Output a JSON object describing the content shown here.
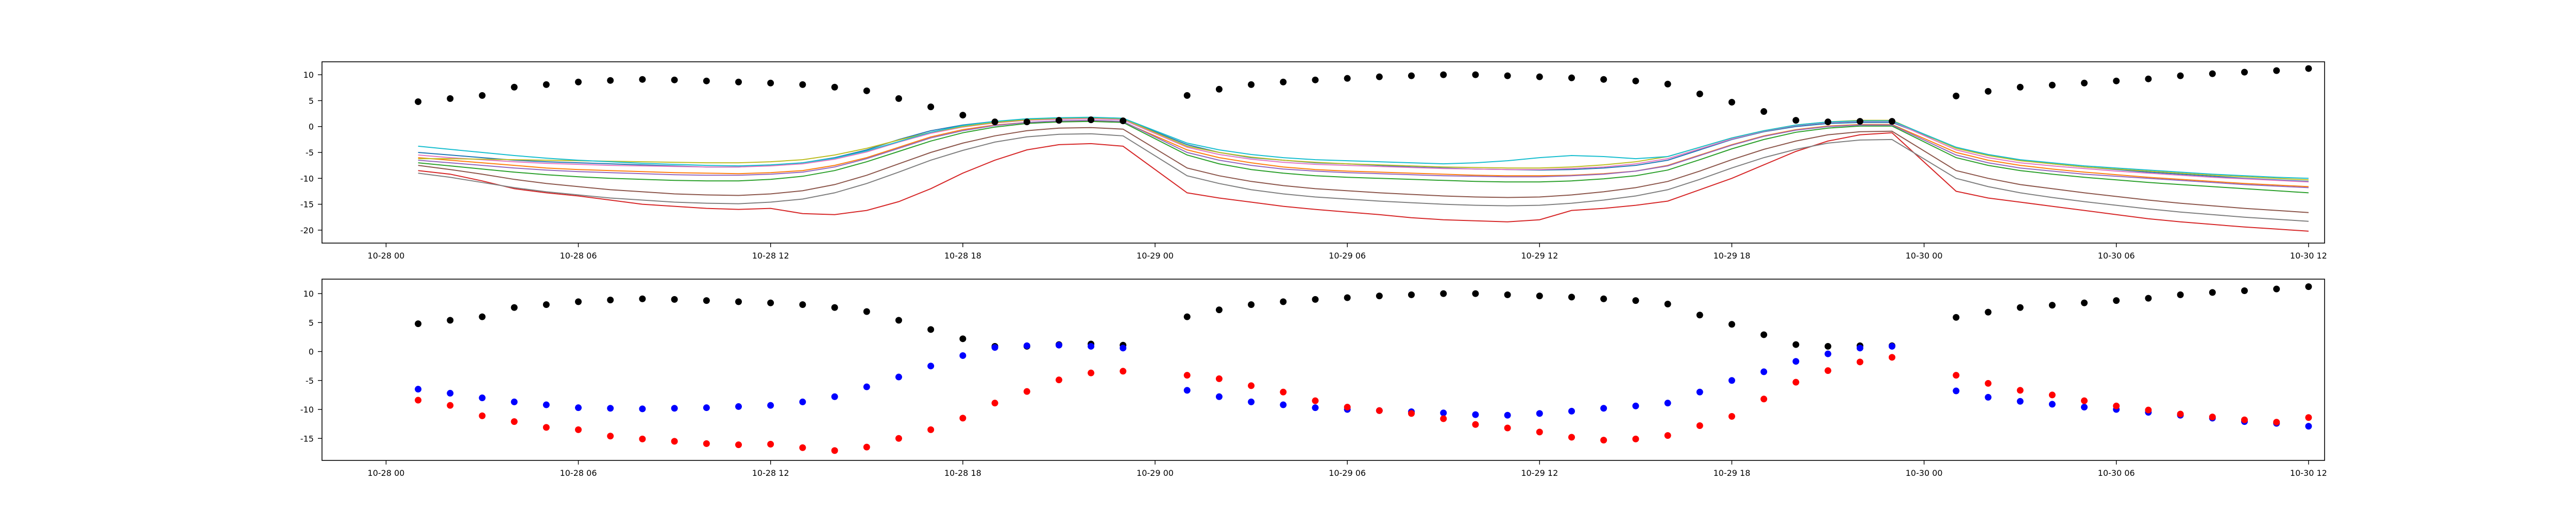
{
  "chart_data": [
    {
      "type": "line",
      "title": "",
      "xlabel": "",
      "ylabel": "",
      "x_ticks": [
        "10-28 00",
        "10-28 06",
        "10-28 12",
        "10-28 18",
        "10-29 00",
        "10-29 06",
        "10-29 12",
        "10-29 18",
        "10-30 00",
        "10-30 06",
        "10-30 12"
      ],
      "y_ticks": [
        "10",
        "5",
        "0",
        "-5",
        "-10",
        "-15",
        "-20"
      ],
      "xlim": [
        -2.0,
        60.5
      ],
      "ylim": [
        -22.5,
        12.5
      ],
      "grid": false,
      "x": [
        1,
        2,
        3,
        4,
        5,
        6,
        7,
        8,
        9,
        10,
        11,
        12,
        13,
        14,
        15,
        16,
        17,
        18,
        19,
        20,
        21,
        22,
        23,
        25,
        26,
        27,
        28,
        29,
        30,
        31,
        32,
        33,
        34,
        35,
        36,
        37,
        38,
        39,
        40,
        41,
        42,
        43,
        44,
        45,
        46,
        47,
        49,
        50,
        51,
        52,
        53,
        54,
        55,
        56,
        57,
        58,
        59,
        60
      ],
      "series_colors": [
        "#1f77b4",
        "#ff7f0e",
        "#2ca02c",
        "#d62728",
        "#9467bd",
        "#8c564b",
        "#e377c2",
        "#7f7f7f",
        "#bcbd22",
        "#17becf"
      ],
      "series": [
        {
          "values": [
            -5.0,
            -5.5,
            -6.0,
            -6.5,
            -6.8,
            -7.0,
            -7.2,
            -7.4,
            -7.6,
            -7.8,
            -7.8,
            -7.5,
            -7.0,
            -6.0,
            -4.5,
            -2.5,
            -0.8,
            0.3,
            1.0,
            1.4,
            1.6,
            1.7,
            1.5,
            -3.5,
            -5.0,
            -6.0,
            -6.5,
            -7.0,
            -7.2,
            -7.5,
            -7.8,
            -8.0,
            -8.2,
            -8.3,
            -8.4,
            -8.3,
            -8.0,
            -7.5,
            -6.5,
            -4.5,
            -2.5,
            -1.0,
            0.0,
            0.6,
            0.8,
            0.8,
            -4.0,
            -5.5,
            -6.5,
            -7.2,
            -7.8,
            -8.3,
            -8.8,
            -9.2,
            -9.6,
            -10.0,
            -10.3,
            -10.6
          ]
        },
        {
          "values": [
            -6.0,
            -6.5,
            -7.0,
            -7.5,
            -8.0,
            -8.3,
            -8.5,
            -8.7,
            -8.9,
            -9.0,
            -9.1,
            -8.9,
            -8.5,
            -7.5,
            -6.0,
            -4.0,
            -2.0,
            -0.6,
            0.3,
            0.8,
            1.0,
            1.1,
            0.9,
            -4.5,
            -6.0,
            -7.0,
            -7.8,
            -8.3,
            -8.6,
            -8.8,
            -9.0,
            -9.2,
            -9.4,
            -9.5,
            -9.5,
            -9.4,
            -9.1,
            -8.6,
            -7.5,
            -5.5,
            -3.5,
            -1.8,
            -0.6,
            0.1,
            0.4,
            0.4,
            -5.0,
            -6.5,
            -7.5,
            -8.2,
            -8.8,
            -9.3,
            -9.8,
            -10.2,
            -10.6,
            -11.0,
            -11.3,
            -11.6
          ]
        },
        {
          "values": [
            -7.0,
            -7.6,
            -8.2,
            -8.8,
            -9.3,
            -9.7,
            -10.0,
            -10.2,
            -10.4,
            -10.5,
            -10.5,
            -10.2,
            -9.6,
            -8.5,
            -6.8,
            -4.8,
            -2.8,
            -1.2,
            -0.1,
            0.6,
            0.9,
            1.0,
            0.8,
            -5.5,
            -7.2,
            -8.3,
            -9.0,
            -9.5,
            -9.8,
            -10.0,
            -10.2,
            -10.4,
            -10.6,
            -10.7,
            -10.7,
            -10.5,
            -10.1,
            -9.5,
            -8.4,
            -6.4,
            -4.3,
            -2.5,
            -1.1,
            -0.3,
            0.1,
            0.1,
            -6.0,
            -7.5,
            -8.5,
            -9.2,
            -9.8,
            -10.3,
            -10.8,
            -11.2,
            -11.6,
            -12.0,
            -12.4,
            -12.8
          ]
        },
        {
          "values": [
            -8.5,
            -9.2,
            -10.5,
            -12.0,
            -12.8,
            -13.4,
            -14.2,
            -15.0,
            -15.4,
            -15.8,
            -16.0,
            -15.8,
            -16.8,
            -17.0,
            -16.2,
            -14.5,
            -12.0,
            -9.0,
            -6.5,
            -4.5,
            -3.5,
            -3.3,
            -3.8,
            -12.8,
            -13.8,
            -14.6,
            -15.4,
            -16.0,
            -16.5,
            -17.0,
            -17.6,
            -18.0,
            -18.2,
            -18.4,
            -18.0,
            -16.2,
            -15.8,
            -15.2,
            -14.4,
            -12.2,
            -10.0,
            -7.4,
            -4.8,
            -2.8,
            -1.6,
            -1.2,
            -12.5,
            -13.8,
            -14.6,
            -15.4,
            -16.2,
            -17.0,
            -17.8,
            -18.4,
            -18.9,
            -19.4,
            -19.8,
            -20.2
          ]
        },
        {
          "values": [
            -6.5,
            -7.0,
            -7.5,
            -8.0,
            -8.4,
            -8.7,
            -8.9,
            -9.1,
            -9.3,
            -9.4,
            -9.4,
            -9.2,
            -8.8,
            -7.8,
            -6.2,
            -4.2,
            -2.2,
            -0.8,
            0.2,
            0.8,
            1.1,
            1.2,
            1.0,
            -5.0,
            -6.5,
            -7.5,
            -8.2,
            -8.6,
            -8.9,
            -9.1,
            -9.3,
            -9.5,
            -9.6,
            -9.7,
            -9.7,
            -9.5,
            -9.2,
            -8.6,
            -7.6,
            -5.6,
            -3.6,
            -1.9,
            -0.7,
            0.0,
            0.3,
            0.3,
            -5.5,
            -7.0,
            -8.0,
            -8.6,
            -9.2,
            -9.6,
            -10.0,
            -10.4,
            -10.8,
            -11.2,
            -11.5,
            -11.8
          ]
        },
        {
          "values": [
            -7.5,
            -8.3,
            -9.2,
            -10.2,
            -11.0,
            -11.6,
            -12.2,
            -12.6,
            -13.0,
            -13.2,
            -13.3,
            -13.0,
            -12.4,
            -11.2,
            -9.4,
            -7.2,
            -5.0,
            -3.2,
            -1.8,
            -0.8,
            -0.3,
            -0.2,
            -0.5,
            -8.0,
            -9.5,
            -10.6,
            -11.4,
            -12.0,
            -12.4,
            -12.8,
            -13.1,
            -13.4,
            -13.6,
            -13.7,
            -13.6,
            -13.2,
            -12.6,
            -11.8,
            -10.6,
            -8.6,
            -6.4,
            -4.4,
            -2.8,
            -1.6,
            -1.0,
            -0.9,
            -8.5,
            -10.0,
            -11.2,
            -12.0,
            -12.8,
            -13.5,
            -14.2,
            -14.8,
            -15.3,
            -15.8,
            -16.2,
            -16.6
          ]
        },
        {
          "values": [
            -5.5,
            -6.0,
            -6.4,
            -6.8,
            -7.1,
            -7.3,
            -7.5,
            -7.6,
            -7.7,
            -7.8,
            -7.8,
            -7.6,
            -7.2,
            -6.3,
            -4.9,
            -3.0,
            -1.3,
            -0.1,
            0.7,
            1.2,
            1.4,
            1.5,
            1.3,
            -4.0,
            -5.4,
            -6.3,
            -6.9,
            -7.3,
            -7.5,
            -7.7,
            -7.9,
            -8.1,
            -8.2,
            -8.3,
            -8.3,
            -8.1,
            -7.8,
            -7.2,
            -6.2,
            -4.3,
            -2.4,
            -0.9,
            0.2,
            0.8,
            1.0,
            1.0,
            -4.5,
            -6.0,
            -7.0,
            -7.6,
            -8.1,
            -8.6,
            -9.0,
            -9.4,
            -9.8,
            -10.1,
            -10.4,
            -10.7
          ]
        },
        {
          "values": [
            -9.0,
            -9.8,
            -10.8,
            -11.8,
            -12.6,
            -13.2,
            -13.8,
            -14.2,
            -14.6,
            -14.8,
            -14.9,
            -14.6,
            -14.0,
            -12.8,
            -11.0,
            -8.8,
            -6.5,
            -4.6,
            -3.0,
            -2.0,
            -1.5,
            -1.4,
            -1.8,
            -9.5,
            -11.0,
            -12.2,
            -13.0,
            -13.6,
            -14.0,
            -14.4,
            -14.7,
            -15.0,
            -15.2,
            -15.3,
            -15.2,
            -14.8,
            -14.2,
            -13.4,
            -12.2,
            -10.2,
            -8.0,
            -6.0,
            -4.4,
            -3.2,
            -2.6,
            -2.5,
            -10.0,
            -11.6,
            -12.8,
            -13.7,
            -14.5,
            -15.2,
            -15.9,
            -16.5,
            -17.0,
            -17.5,
            -17.9,
            -18.3
          ]
        },
        {
          "values": [
            -6.2,
            -6.2,
            -6.3,
            -6.4,
            -6.5,
            -6.6,
            -6.7,
            -6.8,
            -6.9,
            -7.0,
            -7.0,
            -6.8,
            -6.4,
            -5.5,
            -4.2,
            -2.6,
            -1.1,
            0.0,
            0.8,
            1.3,
            1.6,
            1.7,
            1.5,
            -3.8,
            -5.0,
            -5.9,
            -6.5,
            -6.9,
            -7.2,
            -7.4,
            -7.6,
            -7.8,
            -7.9,
            -8.0,
            -8.0,
            -7.8,
            -7.4,
            -6.8,
            -5.8,
            -4.0,
            -2.2,
            -0.8,
            0.3,
            0.9,
            1.2,
            1.2,
            -4.2,
            -5.6,
            -6.6,
            -7.2,
            -7.8,
            -8.2,
            -8.6,
            -9.0,
            -9.4,
            -9.7,
            -10.0,
            -10.3
          ]
        },
        {
          "values": [
            -3.8,
            -4.4,
            -5.0,
            -5.6,
            -6.1,
            -6.5,
            -6.8,
            -7.1,
            -7.3,
            -7.5,
            -7.6,
            -7.4,
            -7.0,
            -6.1,
            -4.7,
            -2.9,
            -1.1,
            0.2,
            1.0,
            1.5,
            1.7,
            1.8,
            1.6,
            -3.2,
            -4.5,
            -5.4,
            -6.0,
            -6.4,
            -6.6,
            -6.8,
            -7.0,
            -7.2,
            -7.0,
            -6.6,
            -6.0,
            -5.6,
            -5.8,
            -6.2,
            -5.8,
            -4.0,
            -2.2,
            -0.8,
            0.3,
            0.9,
            1.1,
            1.1,
            -4.0,
            -5.4,
            -6.4,
            -7.0,
            -7.6,
            -8.0,
            -8.4,
            -8.8,
            -9.2,
            -9.5,
            -9.8,
            -10.0
          ]
        }
      ],
      "points": {
        "color": "#000000",
        "values": [
          4.8,
          5.4,
          6.0,
          7.6,
          8.1,
          8.6,
          8.9,
          9.1,
          9.0,
          8.8,
          8.6,
          8.4,
          8.1,
          7.6,
          6.9,
          5.4,
          3.8,
          2.2,
          0.9,
          0.9,
          1.2,
          1.3,
          1.1,
          6.0,
          7.2,
          8.1,
          8.6,
          9.0,
          9.3,
          9.6,
          9.8,
          10.0,
          10.0,
          9.8,
          9.6,
          9.4,
          9.1,
          8.8,
          8.2,
          6.3,
          4.7,
          2.9,
          1.2,
          0.9,
          1.0,
          1.0,
          5.9,
          6.8,
          7.6,
          8.0,
          8.4,
          8.8,
          9.2,
          9.8,
          10.2,
          10.5,
          10.8,
          11.2
        ]
      }
    },
    {
      "type": "scatter",
      "title": "",
      "xlabel": "",
      "ylabel": "",
      "x_ticks": [
        "10-28 00",
        "10-28 06",
        "10-28 12",
        "10-28 18",
        "10-29 00",
        "10-29 06",
        "10-29 12",
        "10-29 18",
        "10-30 00",
        "10-30 06",
        "10-30 12"
      ],
      "y_ticks": [
        "10",
        "5",
        "0",
        "-5",
        "-10",
        "-15"
      ],
      "xlim": [
        -2.0,
        60.5
      ],
      "ylim": [
        -18.8,
        12.5
      ],
      "grid": false,
      "x": [
        1,
        2,
        3,
        4,
        5,
        6,
        7,
        8,
        9,
        10,
        11,
        12,
        13,
        14,
        15,
        16,
        17,
        18,
        19,
        20,
        21,
        22,
        23,
        25,
        26,
        27,
        28,
        29,
        30,
        31,
        32,
        33,
        34,
        35,
        36,
        37,
        38,
        39,
        40,
        41,
        42,
        43,
        44,
        45,
        46,
        47,
        49,
        50,
        51,
        52,
        53,
        54,
        55,
        56,
        57,
        58,
        59,
        60
      ],
      "series": [
        {
          "color": "#000000",
          "values": [
            4.8,
            5.4,
            6.0,
            7.6,
            8.1,
            8.6,
            8.9,
            9.1,
            9.0,
            8.8,
            8.6,
            8.4,
            8.1,
            7.6,
            6.9,
            5.4,
            3.8,
            2.2,
            0.9,
            0.9,
            1.2,
            1.3,
            1.1,
            6.0,
            7.2,
            8.1,
            8.6,
            9.0,
            9.3,
            9.6,
            9.8,
            10.0,
            10.0,
            9.8,
            9.6,
            9.4,
            9.1,
            8.8,
            8.2,
            6.3,
            4.7,
            2.9,
            1.2,
            0.9,
            1.0,
            1.0,
            5.9,
            6.8,
            7.6,
            8.0,
            8.4,
            8.8,
            9.2,
            9.8,
            10.2,
            10.5,
            10.8,
            11.2
          ]
        },
        {
          "color": "#0000ff",
          "values": [
            -6.5,
            -7.2,
            -8.0,
            -8.7,
            -9.2,
            -9.7,
            -9.8,
            -9.9,
            -9.8,
            -9.7,
            -9.5,
            -9.3,
            -8.7,
            -7.8,
            -6.1,
            -4.4,
            -2.5,
            -0.7,
            0.7,
            1.0,
            1.1,
            0.9,
            0.6,
            -6.7,
            -7.8,
            -8.7,
            -9.2,
            -9.7,
            -10.0,
            -10.2,
            -10.4,
            -10.6,
            -10.9,
            -11.0,
            -10.7,
            -10.3,
            -9.8,
            -9.4,
            -8.9,
            -7.0,
            -5.0,
            -3.5,
            -1.7,
            -0.4,
            0.6,
            0.9,
            -6.8,
            -7.9,
            -8.6,
            -9.1,
            -9.6,
            -10.0,
            -10.5,
            -11.0,
            -11.5,
            -12.1,
            -12.4,
            -12.9
          ]
        },
        {
          "color": "#ff0000",
          "values": [
            -8.4,
            -9.3,
            -11.1,
            -12.1,
            -13.1,
            -13.5,
            -14.6,
            -15.1,
            -15.5,
            -15.9,
            -16.1,
            -16.0,
            -16.6,
            -17.1,
            -16.5,
            -15.0,
            -13.5,
            -11.5,
            -8.9,
            -6.9,
            -4.9,
            -3.7,
            -3.4,
            -4.1,
            -4.7,
            -5.9,
            -7.0,
            -8.5,
            -9.6,
            -10.2,
            -10.7,
            -11.6,
            -12.6,
            -13.2,
            -13.9,
            -14.8,
            -15.3,
            -15.1,
            -14.5,
            -12.8,
            -11.2,
            -8.2,
            -5.3,
            -3.3,
            -1.8,
            -1.0,
            -4.1,
            -5.5,
            -6.7,
            -7.5,
            -8.5,
            -9.4,
            -10.1,
            -10.8,
            -11.3,
            -11.8,
            -12.2,
            -11.4
          ]
        }
      ]
    }
  ]
}
